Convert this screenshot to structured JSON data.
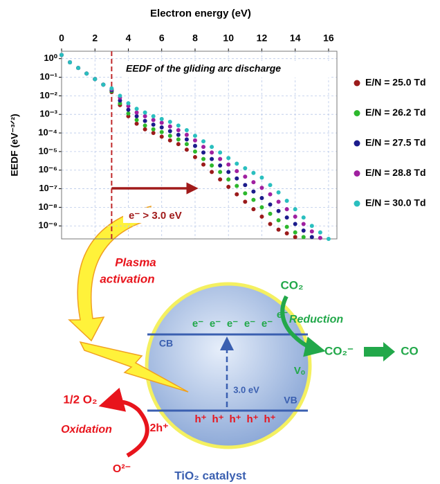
{
  "chart_data": {
    "type": "scatter",
    "x_label": "Electron energy (eV)",
    "y_label": "EEDF (eV⁻³ᐟ²)",
    "annotation": "EEDF of the gliding arc discharge",
    "threshold": 3,
    "threshold_label": "e⁻ > 3.0 eV",
    "log_y": true,
    "grid": true,
    "legend": "right",
    "xlim": [
      0,
      16.5
    ],
    "xticks": [
      0,
      2,
      4,
      6,
      8,
      10,
      12,
      14,
      16
    ],
    "ylim": [
      2e-10,
      2.5
    ],
    "yticks": [
      {
        "value": 1,
        "label": "10⁰"
      },
      {
        "value": 0.1,
        "label": "10⁻¹"
      },
      {
        "value": 0.01,
        "label": "10⁻²"
      },
      {
        "value": 0.001,
        "label": "10⁻³"
      },
      {
        "value": 0.0001,
        "label": "10⁻⁴"
      },
      {
        "value": 1e-05,
        "label": "10⁻⁵"
      },
      {
        "value": 1e-06,
        "label": "10⁻⁶"
      },
      {
        "value": 1e-07,
        "label": "10⁻⁷"
      },
      {
        "value": 1e-08,
        "label": "10⁻⁸"
      },
      {
        "value": 1e-09,
        "label": "10⁻⁹"
      }
    ],
    "x": [
      0,
      0.5,
      1,
      1.5,
      2,
      2.5,
      3,
      3.5,
      4,
      4.5,
      5,
      5.5,
      6,
      6.5,
      7,
      7.5,
      8,
      8.5,
      9,
      9.5,
      10,
      10.5,
      11,
      11.5,
      12,
      12.5,
      13,
      13.5,
      14,
      14.5,
      15,
      15.5,
      16
    ],
    "series": [
      {
        "name": "E/N = 25.0 Td",
        "color": "#9b1b1b",
        "values": [
          1.58,
          0.631,
          0.316,
          0.158,
          0.0794,
          0.0398,
          0.0158,
          0.00316,
          0.000794,
          0.000316,
          0.000158,
          0.0001,
          6.31e-05,
          3.98e-05,
          2.51e-05,
          1.26e-05,
          5.01e-06,
          2e-06,
          7.94e-07,
          3.16e-07,
          1.26e-07,
          5.01e-08,
          2e-08,
          7.94e-09,
          3.16e-09,
          1.26e-09,
          6.31e-10,
          3.98e-10,
          2.51e-10,
          null,
          null,
          null,
          null
        ]
      },
      {
        "name": "E/N = 26.2 Td",
        "color": "#2db82d",
        "values": [
          1.58,
          0.631,
          0.316,
          0.158,
          0.0794,
          0.0398,
          0.0178,
          0.00398,
          0.00112,
          0.000501,
          0.000251,
          0.000158,
          0.000112,
          7.08e-05,
          4.47e-05,
          2.51e-05,
          1e-05,
          3.98e-06,
          1.78e-06,
          7.94e-07,
          3.16e-07,
          1.41e-07,
          5.62e-08,
          2.51e-08,
          1e-08,
          4.47e-09,
          2e-09,
          8.91e-10,
          4.47e-10,
          2.51e-10,
          null,
          null,
          null
        ]
      },
      {
        "name": "E/N = 27.5 Td",
        "color": "#1c1c8c",
        "values": [
          1.58,
          0.631,
          0.316,
          0.158,
          0.0794,
          0.0398,
          0.02,
          0.00562,
          0.00178,
          0.000794,
          0.000447,
          0.000282,
          0.0002,
          0.000126,
          7.94e-05,
          4.47e-05,
          2e-05,
          8.91e-06,
          3.98e-06,
          1.78e-06,
          7.94e-07,
          3.55e-07,
          1.58e-07,
          7.08e-08,
          3.16e-08,
          1.41e-08,
          6.31e-09,
          2.82e-09,
          1.26e-09,
          5.62e-10,
          2.51e-10,
          null,
          null
        ]
      },
      {
        "name": "E/N = 28.8 Td",
        "color": "#a020a0",
        "values": [
          1.58,
          0.631,
          0.316,
          0.158,
          0.0794,
          0.0398,
          0.0224,
          0.00794,
          0.00282,
          0.00126,
          0.000794,
          0.000501,
          0.000355,
          0.000224,
          0.000141,
          7.94e-05,
          3.98e-05,
          1.78e-05,
          8.91e-06,
          3.98e-06,
          2e-06,
          8.91e-07,
          4.47e-07,
          2.24e-07,
          1.12e-07,
          5.01e-08,
          2e-08,
          7.94e-09,
          3.16e-09,
          1.26e-09,
          5.01e-10,
          2.24e-10,
          null
        ]
      },
      {
        "name": "E/N = 30.0 Td",
        "color": "#2abfbf",
        "values": [
          1.58,
          0.631,
          0.316,
          0.158,
          0.0794,
          0.0398,
          0.0251,
          0.01,
          0.00398,
          0.002,
          0.00126,
          0.000794,
          0.000562,
          0.000398,
          0.000251,
          0.000141,
          7.08e-05,
          3.55e-05,
          1.78e-05,
          8.91e-06,
          4.47e-06,
          2.24e-06,
          1.26e-06,
          7.08e-07,
          3.98e-07,
          1.58e-07,
          6.31e-08,
          2.24e-08,
          7.94e-09,
          2.82e-09,
          1e-09,
          4.47e-10,
          2e-10
        ]
      }
    ]
  },
  "diagram": {
    "plasma_label": [
      "Plasma",
      "activation"
    ],
    "cb": "CB",
    "vb": "VB",
    "gap": "3.0 eV",
    "electrons": [
      "e⁻",
      "e⁻",
      "e⁻",
      "e⁻",
      "e⁻"
    ],
    "holes": [
      "h⁺",
      "h⁺",
      "h⁺",
      "h⁺",
      "h⁺"
    ],
    "reduction": {
      "reactant": "CO₂",
      "electron": "e⁻",
      "label": "Reduction",
      "vacancy": "Vₒ",
      "intermediate": "CO₂⁻",
      "product": "CO"
    },
    "oxidation": {
      "product": "1/2 O₂",
      "label": "Oxidation",
      "holes": "2h⁺",
      "reactant": "O²⁻"
    },
    "catalyst": "TiO₂ catalyst"
  }
}
